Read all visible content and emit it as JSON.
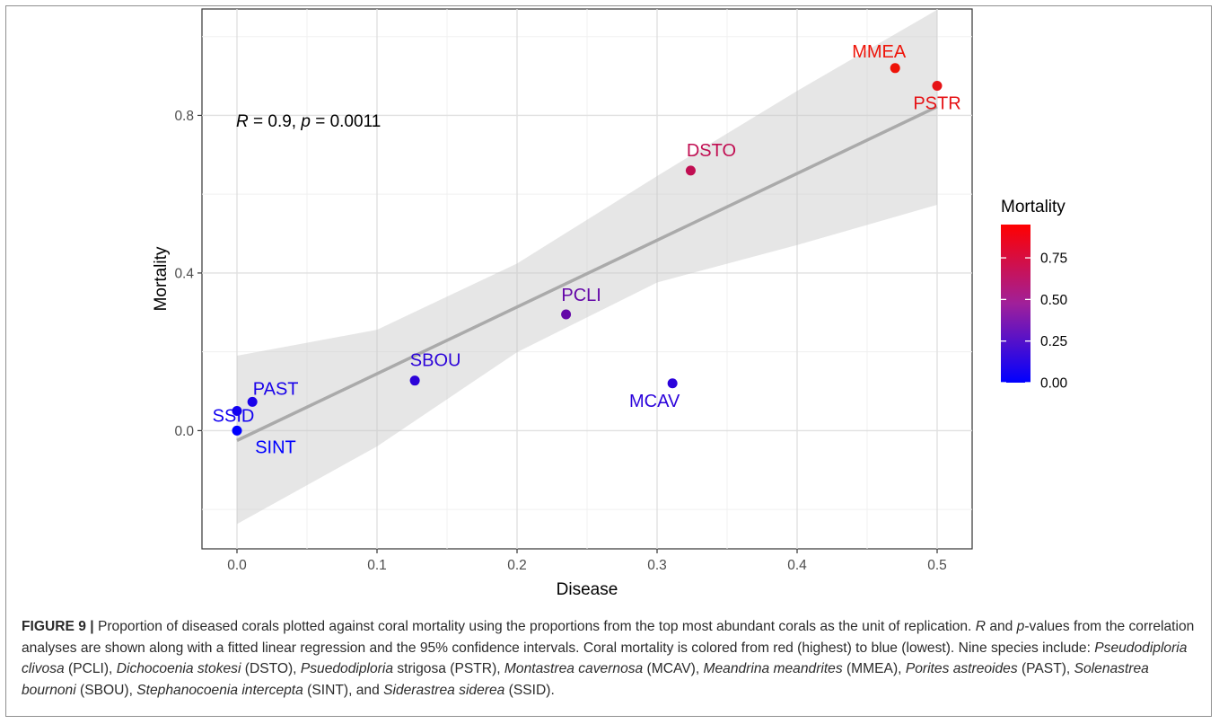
{
  "chart_data": {
    "type": "scatter",
    "xlabel": "Disease",
    "ylabel": "Mortality",
    "xlim": [
      -0.025,
      0.525
    ],
    "ylim": [
      -0.3,
      1.07
    ],
    "x_ticks": [
      0.0,
      0.1,
      0.2,
      0.3,
      0.4,
      0.5
    ],
    "x_tick_labels": [
      "0.0",
      "0.1",
      "0.2",
      "0.3",
      "0.4",
      "0.5"
    ],
    "y_ticks": [
      0.0,
      0.4,
      0.8
    ],
    "y_tick_labels": [
      "0.0",
      "0.4",
      "0.8"
    ],
    "grid": true,
    "annotation": {
      "r_label": "R",
      "r_value": " = 0.9, ",
      "p_label": "p",
      "p_value": " = 0.0011"
    },
    "points": [
      {
        "label": "MMEA",
        "x": 0.47,
        "y": 0.92,
        "mortality": 0.92
      },
      {
        "label": "PSTR",
        "x": 0.5,
        "y": 0.875,
        "mortality": 0.875
      },
      {
        "label": "DSTO",
        "x": 0.324,
        "y": 0.66,
        "mortality": 0.66
      },
      {
        "label": "PCLI",
        "x": 0.235,
        "y": 0.295,
        "mortality": 0.295
      },
      {
        "label": "SBOU",
        "x": 0.127,
        "y": 0.127,
        "mortality": 0.127
      },
      {
        "label": "MCAV",
        "x": 0.311,
        "y": 0.12,
        "mortality": 0.12
      },
      {
        "label": "PAST",
        "x": 0.011,
        "y": 0.073,
        "mortality": 0.073
      },
      {
        "label": "SSID",
        "x": 0.0,
        "y": 0.05,
        "mortality": 0.05
      },
      {
        "label": "SINT",
        "x": 0.0,
        "y": 0.0,
        "mortality": 0.0
      }
    ],
    "regression": {
      "x": [
        0.0,
        0.5
      ],
      "y": [
        -0.025,
        0.822
      ]
    },
    "confidence_band": {
      "x": [
        0.0,
        0.1,
        0.2,
        0.3,
        0.4,
        0.5
      ],
      "upper": [
        0.19,
        0.256,
        0.424,
        0.646,
        0.862,
        1.068
      ],
      "lower": [
        -0.237,
        -0.04,
        0.199,
        0.376,
        0.471,
        0.573
      ]
    },
    "legend": {
      "title": "Mortality",
      "position": "right",
      "ticks": [
        0.75,
        0.5,
        0.25,
        0.0
      ],
      "tick_labels": [
        "0.75",
        "0.50",
        "0.25",
        "0.00"
      ],
      "range": [
        0.0,
        0.95
      ],
      "color_low": "#0000ff",
      "color_high": "#ff0000"
    },
    "colors": {
      "band": "#e6e6e6",
      "line": "#aaaaaa",
      "grid_major": "#e0e0e0",
      "grid_minor": "#f0f0f0"
    }
  },
  "caption": {
    "label": "FIGURE 9 |",
    "segments": [
      {
        "t": " Proportion of diseased corals plotted against coral mortality using the proportions from the top most abundant corals as the unit of replication. ",
        "i": false
      },
      {
        "t": "R",
        "i": true
      },
      {
        "t": " and ",
        "i": false
      },
      {
        "t": "p",
        "i": true
      },
      {
        "t": "-values from the correlation analyses are shown along with a fitted linear regression and the 95% confidence intervals. Coral mortality is colored from red (highest) to blue (lowest). Nine species include: ",
        "i": false
      },
      {
        "t": "Pseudodiploria clivosa",
        "i": true
      },
      {
        "t": " (PCLI), ",
        "i": false
      },
      {
        "t": "Dichocoenia stokesi",
        "i": true
      },
      {
        "t": " (DSTO), ",
        "i": false
      },
      {
        "t": "Psuedodiploria",
        "i": true
      },
      {
        "t": " strigosa (PSTR), ",
        "i": false
      },
      {
        "t": "Montastrea cavernosa",
        "i": true
      },
      {
        "t": " (MCAV), ",
        "i": false
      },
      {
        "t": "Meandrina meandrites",
        "i": true
      },
      {
        "t": " (MMEA), ",
        "i": false
      },
      {
        "t": "Porites astreoides",
        "i": true
      },
      {
        "t": " (PAST), ",
        "i": false
      },
      {
        "t": "Solenastrea bournoni",
        "i": true
      },
      {
        "t": " (SBOU), ",
        "i": false
      },
      {
        "t": "Stephanocoenia intercepta",
        "i": true
      },
      {
        "t": " (SINT), and ",
        "i": false
      },
      {
        "t": "Siderastrea siderea",
        "i": true
      },
      {
        "t": " (SSID).",
        "i": false
      }
    ]
  }
}
